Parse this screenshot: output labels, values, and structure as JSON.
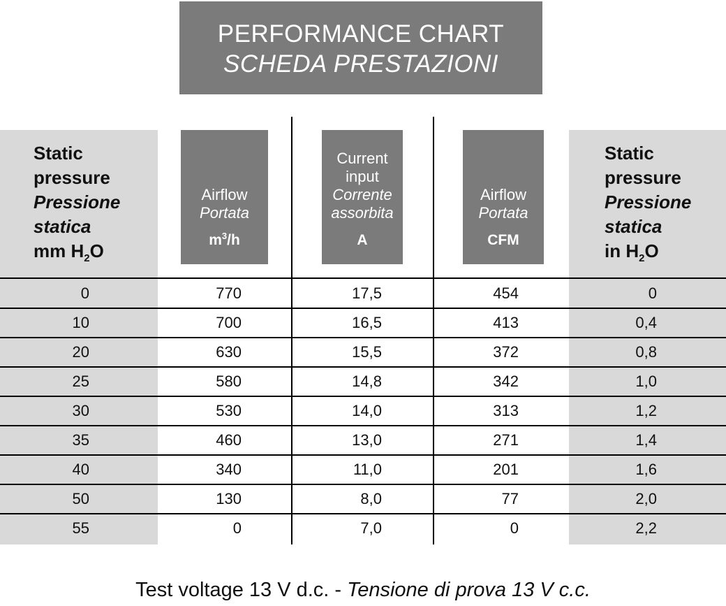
{
  "title": {
    "line1": "PERFORMANCE CHART",
    "line2": "SCHEDA PRESTAZIONI"
  },
  "columns": {
    "left": {
      "line1": "Static",
      "line2": "pressure",
      "line3": "Pressione",
      "line4": "statica",
      "unit_main": "mm H",
      "unit_sub": "2",
      "unit_tail": "O"
    },
    "airflow_m3h": {
      "label": "Airflow",
      "label_it": "Portata",
      "unit_main": "m",
      "unit_sup": "3",
      "unit_tail": "/h"
    },
    "current": {
      "label1": "Current",
      "label2": "input",
      "label_it1": "Corrente",
      "label_it2": "assorbita",
      "unit": "A"
    },
    "airflow_cfm": {
      "label": "Airflow",
      "label_it": "Portata",
      "unit": "CFM"
    },
    "right": {
      "line1": "Static",
      "line2": "pressure",
      "line3": "Pressione",
      "line4": "statica",
      "unit_main": "in H",
      "unit_sub": "2",
      "unit_tail": "O"
    }
  },
  "rows": [
    {
      "mm": "0",
      "m3h": "770",
      "amp": "17,5",
      "cfm": "454",
      "inh2o": "0"
    },
    {
      "mm": "10",
      "m3h": "700",
      "amp": "16,5",
      "cfm": "413",
      "inh2o": "0,4"
    },
    {
      "mm": "20",
      "m3h": "630",
      "amp": "15,5",
      "cfm": "372",
      "inh2o": "0,8"
    },
    {
      "mm": "25",
      "m3h": "580",
      "amp": "14,8",
      "cfm": "342",
      "inh2o": "1,0"
    },
    {
      "mm": "30",
      "m3h": "530",
      "amp": "14,0",
      "cfm": "313",
      "inh2o": "1,2"
    },
    {
      "mm": "35",
      "m3h": "460",
      "amp": "13,0",
      "cfm": "271",
      "inh2o": "1,4"
    },
    {
      "mm": "40",
      "m3h": "340",
      "amp": "11,0",
      "cfm": "201",
      "inh2o": "1,6"
    },
    {
      "mm": "50",
      "m3h": "130",
      "amp": "8,0",
      "cfm": "77",
      "inh2o": "2,0"
    },
    {
      "mm": "55",
      "m3h": "0",
      "amp": "7,0",
      "cfm": "0",
      "inh2o": "2,2"
    }
  ],
  "footer": {
    "text": "Test voltage 13 V d.c. - ",
    "text_it": "Tensione di prova 13 V c.c."
  },
  "colors": {
    "header_dark": "#7b7b7b",
    "side_light": "#d9d9d9"
  }
}
